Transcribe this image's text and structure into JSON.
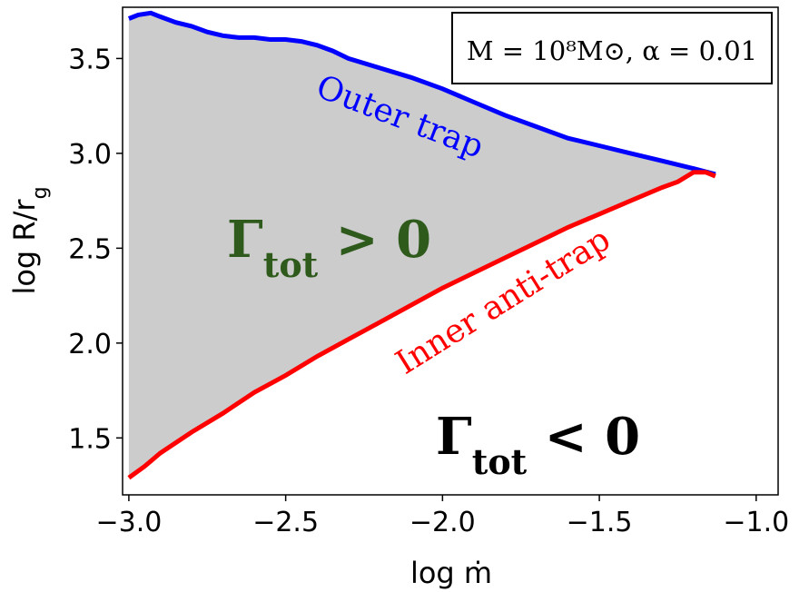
{
  "chart_data": {
    "type": "area",
    "xlabel": "log ṁ",
    "ylabel": "log R/r",
    "ylabel_sub": "g",
    "xlim": [
      -3.02,
      -0.93
    ],
    "ylim": [
      1.2,
      3.77
    ],
    "xticks": [
      -3.0,
      -2.5,
      -2.0,
      -1.5,
      -1.0
    ],
    "xtick_labels": [
      "−3.0",
      "−2.5",
      "−2.0",
      "−1.5",
      "−1.0"
    ],
    "yticks": [
      1.5,
      2.0,
      2.5,
      3.0,
      3.5
    ],
    "ytick_labels": [
      "1.5",
      "2.0",
      "2.5",
      "3.0",
      "3.5"
    ],
    "grid": false,
    "fill_color": "#cccccc",
    "series": [
      {
        "name": "Outer trap",
        "color": "#0000ff",
        "x": [
          -3.0,
          -2.97,
          -2.93,
          -2.9,
          -2.85,
          -2.8,
          -2.75,
          -2.7,
          -2.65,
          -2.6,
          -2.55,
          -2.5,
          -2.45,
          -2.4,
          -2.35,
          -2.3,
          -2.2,
          -2.1,
          -2.0,
          -1.9,
          -1.8,
          -1.7,
          -1.6,
          -1.5,
          -1.4,
          -1.3,
          -1.2,
          -1.13
        ],
        "y": [
          3.71,
          3.73,
          3.74,
          3.72,
          3.69,
          3.67,
          3.64,
          3.62,
          3.61,
          3.61,
          3.6,
          3.6,
          3.59,
          3.57,
          3.54,
          3.5,
          3.45,
          3.4,
          3.34,
          3.27,
          3.2,
          3.14,
          3.08,
          3.04,
          3.0,
          2.96,
          2.92,
          2.89
        ]
      },
      {
        "name": "Inner anti-trap",
        "color": "#ff0000",
        "x": [
          -3.0,
          -2.95,
          -2.9,
          -2.8,
          -2.7,
          -2.6,
          -2.5,
          -2.4,
          -2.3,
          -2.2,
          -2.1,
          -2.0,
          -1.9,
          -1.8,
          -1.7,
          -1.6,
          -1.5,
          -1.4,
          -1.3,
          -1.25,
          -1.2,
          -1.16,
          -1.13
        ],
        "y": [
          1.29,
          1.35,
          1.42,
          1.53,
          1.63,
          1.74,
          1.83,
          1.93,
          2.02,
          2.11,
          2.2,
          2.29,
          2.37,
          2.45,
          2.53,
          2.61,
          2.68,
          2.75,
          2.82,
          2.85,
          2.9,
          2.9,
          2.88
        ]
      }
    ],
    "annotations": {
      "legend_box": "M = 10⁸M⊙, α = 0.01",
      "outer_label": "Outer trap",
      "inner_label": "Inner anti-trap",
      "gamma_pos": "Γ",
      "gamma_pos_sub": "tot",
      "gamma_pos_rel": " > 0",
      "gamma_neg": "Γ",
      "gamma_neg_sub": "tot",
      "gamma_neg_rel": " < 0",
      "gamma_pos_color": "#2e5a1c",
      "gamma_neg_color": "#000000"
    }
  }
}
